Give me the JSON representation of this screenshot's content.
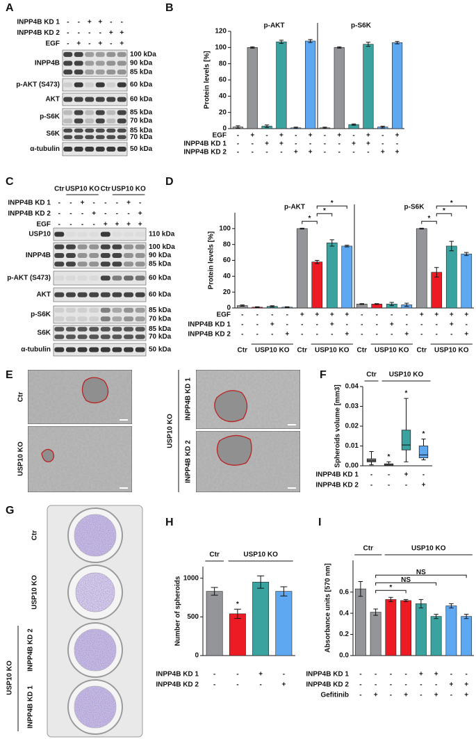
{
  "blots": [
    {
      "label": "A",
      "conditions": [
        {
          "name": "INPP4B KD 1",
          "signs": [
            "-",
            "-",
            "+",
            "+",
            "-",
            "-"
          ]
        },
        {
          "name": "INPP4B KD 2",
          "signs": [
            "-",
            "-",
            "-",
            "-",
            "+",
            "+"
          ]
        },
        {
          "name": "EGF",
          "signs": [
            "-",
            "+",
            "-",
            "+",
            "-",
            "+"
          ]
        }
      ],
      "rows": [
        {
          "name": "INPP4B",
          "kda": [
            "100 kDa",
            "90 kDa",
            "85 kDa"
          ]
        },
        {
          "name": "p-AKT (S473)",
          "kda": [
            "60 kDa"
          ]
        },
        {
          "name": "AKT",
          "kda": [
            "60 kDa"
          ]
        },
        {
          "name": "p-S6K",
          "kda": [
            "85 kDa",
            "70 kDa"
          ]
        },
        {
          "name": "S6K",
          "kda": [
            "85 kDa",
            "70 kDa"
          ]
        },
        {
          "name": "α-tubulin",
          "kda": [
            "50 kDa"
          ]
        }
      ]
    },
    {
      "label": "C",
      "lane_headers": [
        {
          "text": "Ctr",
          "from": 0,
          "to": 0
        },
        {
          "text": "USP10 KO",
          "from": 1,
          "to": 3
        },
        {
          "text": "Ctr",
          "from": 4,
          "to": 4
        },
        {
          "text": "USP10 KO",
          "from": 5,
          "to": 7
        }
      ],
      "conditions": [
        {
          "name": "INPP4B KD 1",
          "signs": [
            "-",
            "-",
            "+",
            "-",
            "-",
            "-",
            "+",
            "-"
          ]
        },
        {
          "name": "INPP4B KD 2",
          "signs": [
            "-",
            "-",
            "-",
            "+",
            "-",
            "-",
            "-",
            "+"
          ]
        },
        {
          "name": "EGF",
          "signs": [
            "-",
            "-",
            "-",
            "-",
            "+",
            "+",
            "+",
            "+"
          ]
        }
      ],
      "rows": [
        {
          "name": "USP10",
          "kda": [
            "110 kDa"
          ]
        },
        {
          "name": "INPP4B",
          "kda": [
            "100 kDa",
            "90 kDa",
            "85 kDa"
          ]
        },
        {
          "name": "p-AKT (S473)",
          "kda": [
            "60 kDa"
          ]
        },
        {
          "name": "AKT",
          "kda": [
            "60 kDa"
          ]
        },
        {
          "name": "p-S6K",
          "kda": [
            "85 kDa",
            "70 kDa"
          ]
        },
        {
          "name": "S6K",
          "kda": [
            "85 kDa",
            "70 kDa"
          ]
        },
        {
          "name": "α-tubulin",
          "kda": [
            "50 kDa"
          ]
        }
      ]
    }
  ],
  "spheroid_images": {
    "label": "E",
    "row_labels": [
      "Ctr",
      "USP10 KO"
    ],
    "group_label": "USP10 KO",
    "knockdown_labels": [
      "INPP4B KD 1",
      "INPP4B KD 2"
    ]
  },
  "plate_image": {
    "label": "G",
    "well_labels": [
      "Ctr",
      "USP10 KO"
    ],
    "group_label": "USP10 KO",
    "knockdown_labels": [
      "INPP4B KD 2",
      "INPP4B KD 1"
    ]
  },
  "chart_data": [
    {
      "type": "bar",
      "label": "B",
      "y_label": "Protein levels [%]",
      "ylim": [
        0,
        120
      ],
      "yticks": [
        0,
        20,
        40,
        60,
        80,
        100,
        120
      ],
      "groups": [
        {
          "title": "p-AKT",
          "values": [
            2,
            100,
            3,
            107,
            1,
            108
          ],
          "errors": [
            1.5,
            0.8,
            1.5,
            2,
            0.8,
            1.8
          ],
          "colors": [
            "#939598",
            "#939598",
            "#3aa39f",
            "#3aa39f",
            "#5ea8f2",
            "#5ea8f2"
          ]
        },
        {
          "title": "p-S6K",
          "values": [
            1,
            100,
            5,
            104,
            2,
            106
          ],
          "errors": [
            0.8,
            0.8,
            0.8,
            2.5,
            1,
            1.5
          ],
          "colors": [
            "#939598",
            "#939598",
            "#3aa39f",
            "#3aa39f",
            "#5ea8f2",
            "#5ea8f2"
          ]
        }
      ],
      "conditions": [
        {
          "name": "EGF",
          "signs": [
            "-",
            "+",
            "-",
            "+",
            "-",
            "+",
            "-",
            "+",
            "-",
            "+",
            "-",
            "+"
          ]
        },
        {
          "name": "INPP4B KD 1",
          "signs": [
            "-",
            "-",
            "+",
            "+",
            "-",
            "-",
            "-",
            "-",
            "+",
            "+",
            "-",
            "-"
          ]
        },
        {
          "name": "INPP4B KD 2",
          "signs": [
            "-",
            "-",
            "-",
            "-",
            "+",
            "+",
            "-",
            "-",
            "-",
            "-",
            "+",
            "+"
          ]
        }
      ]
    },
    {
      "type": "bar",
      "label": "D",
      "y_label": "Protein levels [%]",
      "ylim": [
        0,
        120
      ],
      "yticks": [
        0,
        20,
        40,
        60,
        80,
        100
      ],
      "groups": [
        {
          "title": "p-AKT",
          "values": [
            3,
            1,
            2,
            1,
            100,
            58,
            82,
            78
          ],
          "errors": [
            0.8,
            0.5,
            0.8,
            0.5,
            0.5,
            2,
            4,
            1
          ],
          "colors": [
            "#939598",
            "#ed1c24",
            "#3aa39f",
            "#5ea8f2",
            "#939598",
            "#ed1c24",
            "#3aa39f",
            "#5ea8f2"
          ]
        },
        {
          "title": "p-S6K",
          "values": [
            5,
            5,
            5,
            4,
            100,
            45,
            78,
            68
          ],
          "errors": [
            0.5,
            0.5,
            2,
            2,
            0.5,
            6,
            6,
            2
          ],
          "colors": [
            "#939598",
            "#ed1c24",
            "#3aa39f",
            "#5ea8f2",
            "#939598",
            "#ed1c24",
            "#3aa39f",
            "#5ea8f2"
          ]
        }
      ],
      "conditions": [
        {
          "name": "EGF",
          "signs": [
            "-",
            "-",
            "-",
            "-",
            "+",
            "+",
            "+",
            "+",
            "-",
            "-",
            "-",
            "-",
            "+",
            "+",
            "+",
            "+"
          ]
        },
        {
          "name": "INPP4B KD 1",
          "signs": [
            "-",
            "-",
            "+",
            "-",
            "-",
            "-",
            "+",
            "-",
            "-",
            "-",
            "+",
            "-",
            "-",
            "-",
            "+",
            "-"
          ]
        },
        {
          "name": "INPP4B KD 2",
          "signs": [
            "-",
            "-",
            "-",
            "+",
            "-",
            "-",
            "-",
            "+",
            "-",
            "-",
            "-",
            "+",
            "-",
            "-",
            "-",
            "+"
          ]
        }
      ],
      "bottom_labels": [
        {
          "text": "Ctr",
          "from": 0,
          "to": 0
        },
        {
          "text": "USP10 KO",
          "from": 1,
          "to": 3
        },
        {
          "text": "Ctr",
          "from": 4,
          "to": 4
        },
        {
          "text": "USP10 KO",
          "from": 5,
          "to": 7
        },
        {
          "text": "Ctr",
          "from": 8,
          "to": 8
        },
        {
          "text": "USP10 KO",
          "from": 9,
          "to": 11
        },
        {
          "text": "Ctr",
          "from": 12,
          "to": 12
        },
        {
          "text": "USP10 KO",
          "from": 13,
          "to": 15
        }
      ],
      "brackets": [
        {
          "from": 4,
          "to": 5,
          "label": "*"
        },
        {
          "from": 5,
          "to": 6,
          "label": "*"
        },
        {
          "from": 5,
          "to": 7,
          "label": "*"
        },
        {
          "from": 12,
          "to": 13,
          "label": "*"
        },
        {
          "from": 13,
          "to": 14,
          "label": "*"
        },
        {
          "from": 13,
          "to": 15,
          "label": "*"
        }
      ]
    },
    {
      "type": "box",
      "label": "F",
      "y_label": "Spheroids volume [mm3]",
      "ylim": [
        0,
        0.04
      ],
      "yticks": [
        {
          "value": 0,
          "label": "0.00"
        },
        0.01,
        0.02,
        0.03,
        0.04
      ],
      "boxes": [
        {
          "min": 0.0005,
          "q1": 0.002,
          "median": 0.0025,
          "q3": 0.0035,
          "max": 0.0072,
          "color": "#6d6e71"
        },
        {
          "min": 0,
          "q1": 0,
          "median": 0.0004,
          "q3": 0.001,
          "max": 0.002,
          "color": "#6d6e71"
        },
        {
          "min": 0.002,
          "q1": 0.008,
          "median": 0.0105,
          "q3": 0.018,
          "max": 0.034,
          "color": "#3aa39f"
        },
        {
          "min": 0.003,
          "q1": 0.004,
          "median": 0.0055,
          "q3": 0.01,
          "max": 0.0135,
          "color": "#5ea8f2"
        }
      ],
      "top_labels": [
        {
          "text": "Ctr",
          "from": 0,
          "to": 0
        },
        {
          "text": "USP10 KO",
          "from": 1,
          "to": 3
        }
      ],
      "marks": [
        {
          "at": 1,
          "label": "*"
        },
        {
          "at": 2,
          "label": "*"
        },
        {
          "at": 3,
          "label": "*"
        }
      ],
      "conditions": [
        {
          "name": "INPP4B KD 1",
          "signs": [
            "-",
            "-",
            "+",
            "-"
          ]
        },
        {
          "name": "INPP4B KD 2",
          "signs": [
            "-",
            "-",
            "-",
            "+"
          ]
        }
      ]
    },
    {
      "type": "bar",
      "label": "H",
      "y_label": "Number of spheroids",
      "ylim": [
        0,
        1150
      ],
      "yticks": [
        0,
        500,
        1000
      ],
      "values": [
        830,
        540,
        950,
        830
      ],
      "errors": [
        50,
        60,
        80,
        60
      ],
      "colors": [
        "#939598",
        "#ed1c24",
        "#3aa39f",
        "#5ea8f2"
      ],
      "top_labels": [
        {
          "text": "Ctr",
          "from": 0,
          "to": 0
        },
        {
          "text": "USP10 KO",
          "from": 1,
          "to": 3
        }
      ],
      "marks": [
        {
          "at": 1,
          "label": "*"
        }
      ],
      "conditions": [
        {
          "name": "INPP4B KD 1",
          "signs": [
            "-",
            "-",
            "+",
            "-"
          ]
        },
        {
          "name": "INPP4B KD 2",
          "signs": [
            "-",
            "-",
            "-",
            "+"
          ]
        }
      ]
    },
    {
      "type": "bar",
      "label": "I",
      "y_label": "Absorbance units [570 nm]",
      "ylim": [
        0,
        0.9
      ],
      "yticks": [
        {
          "value": 0,
          "label": "0.0"
        },
        0.2,
        0.4,
        0.6
      ],
      "values": [
        0.63,
        0.41,
        0.53,
        0.52,
        0.49,
        0.37,
        0.47,
        0.37
      ],
      "errors": [
        0.07,
        0.03,
        0.02,
        0.01,
        0.04,
        0.02,
        0.02,
        0.02
      ],
      "colors": [
        "#939598",
        "#939598",
        "#ed1c24",
        "#ed1c24",
        "#3aa39f",
        "#3aa39f",
        "#5ea8f2",
        "#5ea8f2"
      ],
      "top_labels": [
        {
          "text": "Ctr",
          "from": 0,
          "to": 1
        },
        {
          "text": "USP10 KO",
          "from": 2,
          "to": 7
        }
      ],
      "brackets": [
        {
          "from": 1,
          "to": 3,
          "label": "*"
        },
        {
          "from": 1,
          "to": 5,
          "label": "NS"
        },
        {
          "from": 1,
          "to": 7,
          "label": "NS"
        }
      ],
      "conditions": [
        {
          "name": "INPP4B KD 1",
          "signs": [
            "-",
            "-",
            "-",
            "-",
            "+",
            "+",
            "-",
            "-"
          ]
        },
        {
          "name": "INPP4B KD 2",
          "signs": [
            "-",
            "-",
            "-",
            "-",
            "-",
            "-",
            "+",
            "+"
          ]
        },
        {
          "name": "Gefitinib",
          "signs": [
            "-",
            "+",
            "-",
            "+",
            "-",
            "+",
            "-",
            "+"
          ]
        }
      ]
    }
  ]
}
